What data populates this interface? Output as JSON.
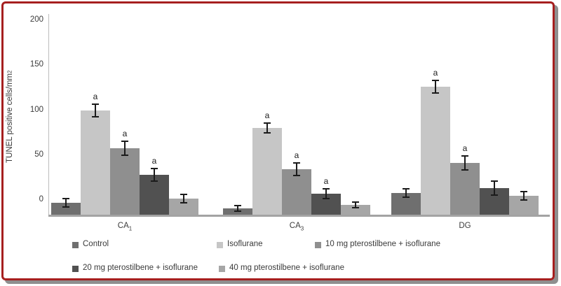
{
  "frame": {
    "border_color": "#a61f1f",
    "shadow_color": "#8f8f8f"
  },
  "chart_data": {
    "type": "bar",
    "title": "",
    "ylabel": {
      "text": "TUNEL positive cells/mm",
      "sup": "2"
    },
    "xlabel": "",
    "ylim": [
      0,
      200
    ],
    "yticks": [
      0,
      50,
      100,
      150,
      200
    ],
    "grid": false,
    "legend_position": "bottom",
    "categories": [
      {
        "text": "CA",
        "sub": "1"
      },
      {
        "text": "CA",
        "sub": "3"
      },
      {
        "text": "DG",
        "sub": ""
      }
    ],
    "significance_letter": "a",
    "series": [
      {
        "name": "Control",
        "color": "#6f6f6f",
        "values": [
          12,
          6,
          22
        ],
        "errors": [
          4,
          3,
          4
        ],
        "sig": [
          "",
          "",
          ""
        ]
      },
      {
        "name": "Isoflurane",
        "color": "#c6c6c6",
        "values": [
          105,
          87,
          129
        ],
        "errors": [
          6,
          5,
          6
        ],
        "sig": [
          "a",
          "a",
          "a"
        ]
      },
      {
        "name": "10 mg pterostilbene + isoflurane",
        "color": "#8f8f8f",
        "values": [
          67,
          46,
          52
        ],
        "errors": [
          7,
          6,
          7
        ],
        "sig": [
          "a",
          "a",
          "a"
        ]
      },
      {
        "name": "20 mg pterostilbene + isoflurane",
        "color": "#515151",
        "values": [
          40,
          21,
          27
        ],
        "errors": [
          6,
          5,
          7
        ],
        "sig": [
          "a",
          "a",
          ""
        ]
      },
      {
        "name": "40 mg pterostilbene + isoflurane",
        "color": "#a6a6a6",
        "values": [
          16,
          10,
          19
        ],
        "errors": [
          4,
          3,
          4
        ],
        "sig": [
          "",
          "",
          ""
        ]
      }
    ]
  }
}
